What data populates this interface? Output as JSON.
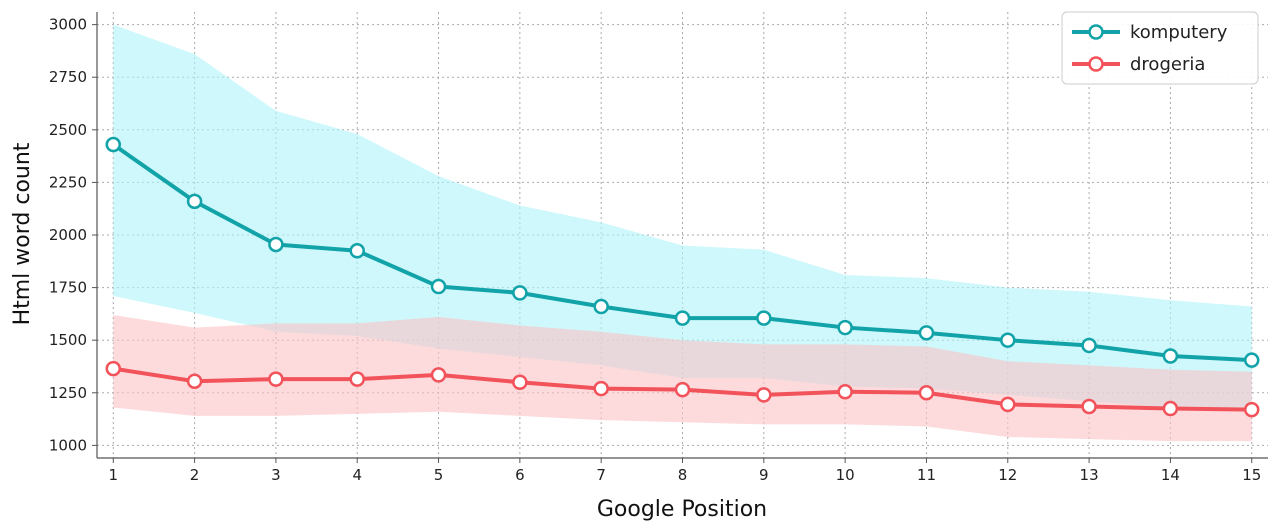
{
  "chart_data": {
    "type": "line",
    "title": "",
    "xlabel": "Google Position",
    "ylabel": "Html word count",
    "x": [
      1,
      2,
      3,
      4,
      5,
      6,
      7,
      8,
      9,
      10,
      11,
      12,
      13,
      14,
      15
    ],
    "xlim": [
      0.8,
      15.2
    ],
    "ylim": [
      940,
      3060
    ],
    "yticks": [
      1000,
      1250,
      1500,
      1750,
      2000,
      2250,
      2500,
      2750,
      3000
    ],
    "grid": true,
    "legend_position": "top-right",
    "series": [
      {
        "name": "komputery",
        "color": "#12a3a8",
        "band_color": "#aef3f8",
        "values": [
          2430,
          2160,
          1955,
          1925,
          1755,
          1725,
          1660,
          1605,
          1605,
          1560,
          1535,
          1500,
          1475,
          1425,
          1405
        ],
        "upper": [
          3000,
          2860,
          2590,
          2480,
          2280,
          2140,
          2060,
          1950,
          1930,
          1810,
          1795,
          1750,
          1730,
          1690,
          1660
        ],
        "lower": [
          1710,
          1630,
          1540,
          1520,
          1460,
          1420,
          1380,
          1320,
          1320,
          1280,
          1270,
          1240,
          1210,
          1180,
          1170
        ]
      },
      {
        "name": "drogeria",
        "color": "#f2535b",
        "band_color": "#fbc3c6",
        "values": [
          1365,
          1305,
          1315,
          1315,
          1335,
          1300,
          1270,
          1265,
          1240,
          1255,
          1250,
          1195,
          1185,
          1175,
          1170
        ],
        "upper": [
          1620,
          1560,
          1580,
          1580,
          1610,
          1570,
          1540,
          1500,
          1480,
          1480,
          1470,
          1400,
          1380,
          1360,
          1350
        ],
        "lower": [
          1180,
          1140,
          1140,
          1150,
          1160,
          1140,
          1120,
          1110,
          1100,
          1100,
          1090,
          1040,
          1030,
          1020,
          1020
        ]
      }
    ]
  }
}
